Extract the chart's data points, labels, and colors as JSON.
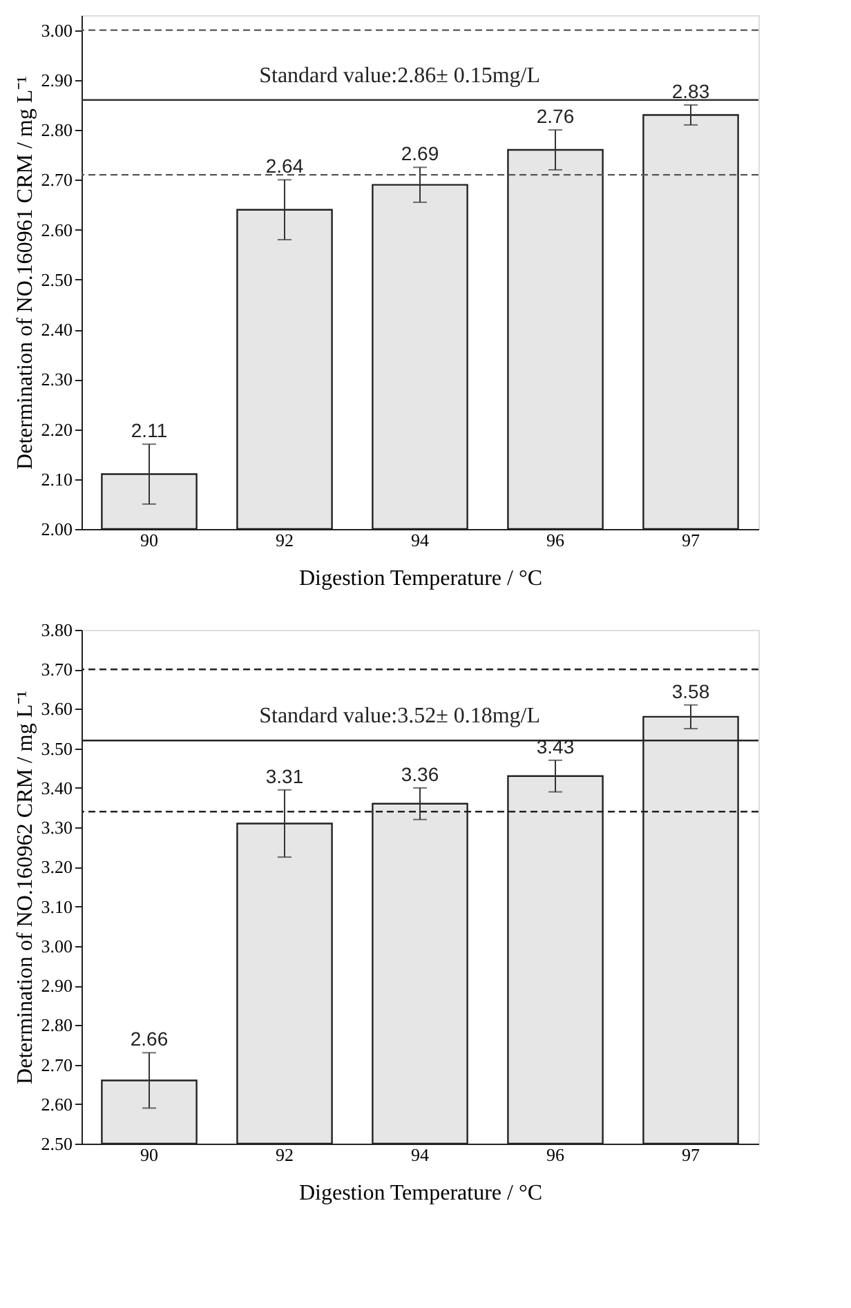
{
  "chart_data": [
    {
      "type": "bar",
      "xlabel": "Digestion Temperature / °C",
      "ylabel": "Determination of  NO.160961  CRM / mg L⁻¹",
      "categories": [
        "90",
        "92",
        "94",
        "96",
        "97"
      ],
      "values": [
        2.11,
        2.64,
        2.69,
        2.76,
        2.83
      ],
      "errors": [
        0.06,
        0.06,
        0.035,
        0.04,
        0.02
      ],
      "color": "#e6e6e6",
      "data_labels": true,
      "grid": false,
      "ylim": [
        2.0,
        3.03
      ],
      "yticks": [
        {
          "value": 2.0,
          "label": "2.00"
        },
        {
          "value": 2.1,
          "label": "2.10"
        },
        {
          "value": 2.2,
          "label": "2.20"
        },
        {
          "value": 2.3,
          "label": "2.30"
        },
        {
          "value": 2.4,
          "label": "2.40"
        },
        {
          "value": 2.5,
          "label": "2.50"
        },
        {
          "value": 2.6,
          "label": "2.60"
        },
        {
          "value": 2.7,
          "label": "2.70"
        },
        {
          "value": 2.8,
          "label": "2.80"
        },
        {
          "value": 2.9,
          "label": "2.90"
        },
        {
          "value": 3.0,
          "label": "3.00"
        }
      ],
      "ref_lines": [
        {
          "axis": "y",
          "value": 3.0,
          "line_style": "dashed",
          "color": "#555555"
        },
        {
          "axis": "y",
          "value": 2.86,
          "line_style": "solid",
          "color": "#333333",
          "label": "Standard value:2.86±  0.15mg/L"
        },
        {
          "axis": "y",
          "value": 2.71,
          "line_style": "dashed",
          "color": "#555555"
        }
      ]
    },
    {
      "type": "bar",
      "xlabel": "Digestion Temperature / °C",
      "ylabel": "Determination of  NO.160962  CRM / mg L⁻¹",
      "categories": [
        "90",
        "92",
        "94",
        "96",
        "97"
      ],
      "values": [
        2.66,
        3.31,
        3.36,
        3.43,
        3.58
      ],
      "errors": [
        0.07,
        0.085,
        0.04,
        0.04,
        0.03
      ],
      "color": "#e6e6e6",
      "data_labels": true,
      "grid": false,
      "ylim": [
        2.5,
        3.8
      ],
      "yticks": [
        {
          "value": 2.5,
          "label": "2.50"
        },
        {
          "value": 2.6,
          "label": "2.60"
        },
        {
          "value": 2.7,
          "label": "2.70"
        },
        {
          "value": 2.8,
          "label": "2.80"
        },
        {
          "value": 2.9,
          "label": "2.90"
        },
        {
          "value": 3.0,
          "label": "3.00"
        },
        {
          "value": 3.1,
          "label": "3.10"
        },
        {
          "value": 3.2,
          "label": "3.20"
        },
        {
          "value": 3.3,
          "label": "3.30"
        },
        {
          "value": 3.4,
          "label": "3.40"
        },
        {
          "value": 3.5,
          "label": "3.50"
        },
        {
          "value": 3.6,
          "label": "3.60"
        },
        {
          "value": 3.7,
          "label": "3.70"
        },
        {
          "value": 3.8,
          "label": "3.80"
        }
      ],
      "ref_lines": [
        {
          "axis": "y",
          "value": 3.7,
          "line_style": "dashed",
          "color": "#222222"
        },
        {
          "axis": "y",
          "value": 3.52,
          "line_style": "solid",
          "color": "#222222",
          "label": "Standard value:3.52±  0.18mg/L"
        },
        {
          "axis": "y",
          "value": 3.34,
          "line_style": "dashed",
          "color": "#222222"
        }
      ]
    }
  ]
}
